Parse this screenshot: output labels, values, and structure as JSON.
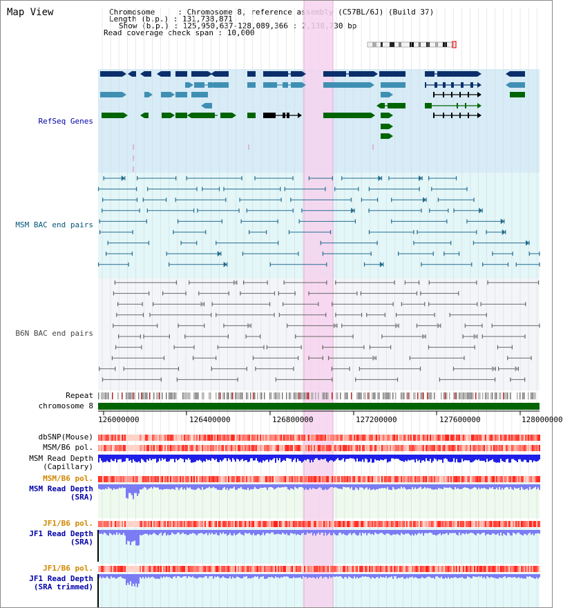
{
  "page": {
    "title": "Map View"
  },
  "info": {
    "lines": [
      "Chromosome     : Chromosome 8, reference assembly (C57BL/6J) (Build 37)",
      "Length (b.p.) : 131,738,871",
      "Show (b.p.) : 125,950,637-128,089,366 : 2,138,730 bp",
      "Read coverage check span : 10,000"
    ]
  },
  "tracks": {
    "refseq": "RefSeq Genes",
    "msm_bac": "MSM BAC end pairs",
    "b6n_bac": "B6N BAC end pairs",
    "repeat": "Repeat",
    "chromosome": "chromosome 8",
    "dbsnp": "dbSNP(Mouse)",
    "msm_b6_pol": "MSM/B6 pol.",
    "msm_depth_cap_1": "MSM Read Depth",
    "msm_depth_cap_2": "(Capillary)",
    "msm_b6_pol_2": "MSM/B6 pol.",
    "msm_depth_sra_1": "MSM Read Depth",
    "msm_depth_sra_2": "(SRA)",
    "jf1_pol": "JF1/B6 pol.",
    "jf1_depth_1": "JF1 Read Depth",
    "jf1_depth_2": "(SRA)",
    "jf1_pol_2": "JF1/B6 pol.",
    "jf1_trim_1": "JF1 Read Depth",
    "jf1_trim_2": "(SRA trimmed)"
  },
  "axis": {
    "ticks": [
      "126000000",
      "126400000",
      "126800000",
      "127200000",
      "127600000",
      "128000000"
    ]
  },
  "colors": {
    "refseq_dark": "#0b2f6b",
    "refseq_mid": "#3f8fb3",
    "refseq_green": "#006400",
    "msm_line": "#226b8f",
    "b6n_line": "#666666",
    "highlight": "#f6d4ef",
    "label_blue": "#0000aa",
    "label_orange": "#d08800",
    "depth_blue": "#1f1fe8",
    "depth_light": "#7b7bf3"
  }
}
